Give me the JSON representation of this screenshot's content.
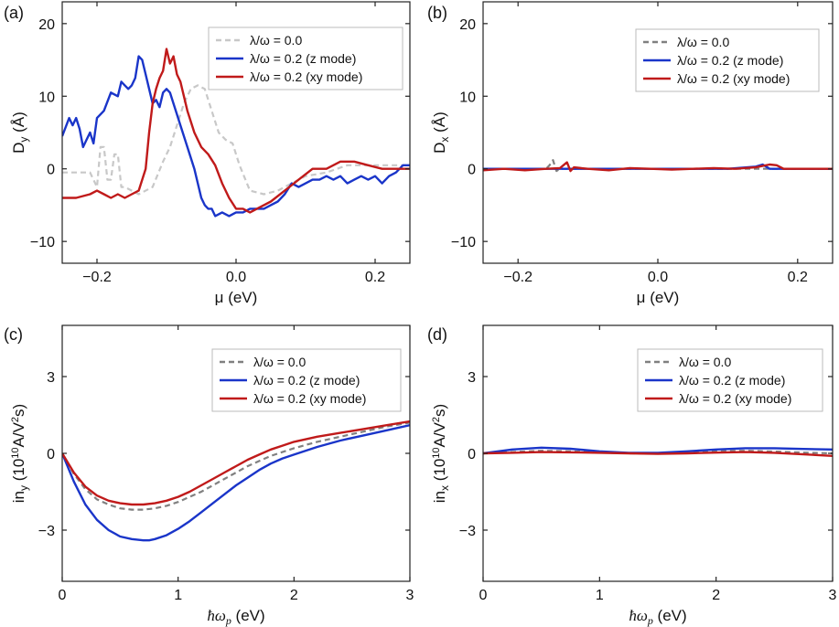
{
  "chart_data": [
    {
      "type": "line",
      "panel": "(a)",
      "xlabel": "μ (eV)",
      "ylabel_main": "D",
      "ylabel_sub": "y",
      "ylabel_unit": " (Å)",
      "xlim": [
        -0.25,
        0.25
      ],
      "ylim": [
        -13,
        23
      ],
      "xticks": [
        -0.2,
        0.0,
        0.2
      ],
      "xtick_labels": [
        "−0.2",
        "0.0",
        "0.2"
      ],
      "yticks": [
        20,
        10,
        0,
        -10
      ],
      "ytick_labels": [
        "20",
        "10",
        "0",
        "−10"
      ],
      "legend_position": "top-right",
      "series": [
        {
          "name": "λ/ω = 0.0",
          "color": "#c8c8c8",
          "dash": true,
          "x": [
            -0.25,
            -0.23,
            -0.21,
            -0.2,
            -0.195,
            -0.19,
            -0.185,
            -0.18,
            -0.175,
            -0.17,
            -0.165,
            -0.16,
            -0.15,
            -0.14,
            -0.12,
            -0.105,
            -0.095,
            -0.085,
            -0.075,
            -0.065,
            -0.055,
            -0.045,
            -0.035,
            -0.025,
            -0.015,
            -0.005,
            0.005,
            0.02,
            0.04,
            0.06,
            0.08,
            0.1,
            0.13,
            0.16,
            0.2,
            0.25
          ],
          "y": [
            -0.5,
            -0.5,
            -0.5,
            -2.5,
            3,
            3,
            -1.5,
            -1.5,
            2,
            2,
            -2.5,
            -2.5,
            -3,
            -3.5,
            -2.5,
            1,
            3,
            6,
            9,
            11,
            11.5,
            11,
            8,
            5,
            4,
            3.5,
            0.5,
            -3,
            -3.5,
            -3,
            -2,
            -1,
            -0.5,
            0.5,
            0.5,
            0.5
          ]
        },
        {
          "name": "λ/ω = 0.2 (z mode)",
          "color": "#1a35c9",
          "dash": false,
          "x": [
            -0.25,
            -0.24,
            -0.235,
            -0.23,
            -0.225,
            -0.22,
            -0.215,
            -0.21,
            -0.205,
            -0.2,
            -0.19,
            -0.18,
            -0.17,
            -0.165,
            -0.16,
            -0.155,
            -0.15,
            -0.145,
            -0.14,
            -0.135,
            -0.13,
            -0.125,
            -0.12,
            -0.115,
            -0.11,
            -0.105,
            -0.1,
            -0.095,
            -0.09,
            -0.08,
            -0.07,
            -0.06,
            -0.055,
            -0.05,
            -0.045,
            -0.04,
            -0.035,
            -0.03,
            -0.02,
            -0.01,
            0.0,
            0.01,
            0.02,
            0.03,
            0.04,
            0.05,
            0.06,
            0.07,
            0.08,
            0.09,
            0.1,
            0.11,
            0.12,
            0.13,
            0.14,
            0.15,
            0.16,
            0.17,
            0.18,
            0.19,
            0.2,
            0.21,
            0.22,
            0.23,
            0.24,
            0.25
          ],
          "y": [
            4.5,
            7,
            6,
            7,
            5.5,
            3,
            4,
            5,
            3.5,
            7,
            8,
            10.5,
            10,
            12,
            11.5,
            11,
            11.5,
            12.5,
            15.5,
            15,
            13,
            11,
            9,
            9.5,
            8.5,
            10.5,
            11,
            10.5,
            9,
            6,
            3,
            0,
            -2,
            -4,
            -5,
            -5.5,
            -5.5,
            -6.5,
            -6,
            -6.5,
            -6,
            -6,
            -5.5,
            -5.5,
            -5.5,
            -5,
            -4.5,
            -3.5,
            -2,
            -2.5,
            -2,
            -1.5,
            -1.5,
            -1,
            -1.5,
            -1,
            -2,
            -1.5,
            -1,
            -1.5,
            -1,
            -2,
            -1,
            -0.5,
            0.5,
            0.5
          ]
        },
        {
          "name": "λ/ω = 0.2 (xy mode)",
          "color": "#c01a1a",
          "dash": false,
          "x": [
            -0.25,
            -0.23,
            -0.21,
            -0.2,
            -0.19,
            -0.18,
            -0.17,
            -0.16,
            -0.15,
            -0.14,
            -0.13,
            -0.125,
            -0.12,
            -0.115,
            -0.11,
            -0.105,
            -0.1,
            -0.095,
            -0.09,
            -0.085,
            -0.08,
            -0.075,
            -0.07,
            -0.06,
            -0.05,
            -0.04,
            -0.03,
            -0.02,
            -0.01,
            0.0,
            0.01,
            0.02,
            0.03,
            0.05,
            0.07,
            0.09,
            0.11,
            0.13,
            0.15,
            0.17,
            0.19,
            0.21,
            0.23,
            0.25
          ],
          "y": [
            -4,
            -4,
            -3.5,
            -3,
            -3.5,
            -4,
            -3.5,
            -4,
            -3.5,
            -3,
            0,
            5,
            9,
            11,
            12.5,
            13.5,
            16.5,
            14.5,
            15.5,
            13,
            12,
            10,
            8,
            5,
            3,
            2,
            0.5,
            -2,
            -4,
            -5.5,
            -5.5,
            -6,
            -5.5,
            -4.5,
            -3,
            -1.5,
            0,
            0,
            1,
            1,
            0.5,
            0,
            0,
            0
          ]
        }
      ]
    },
    {
      "type": "line",
      "panel": "(b)",
      "xlabel": "μ (eV)",
      "ylabel_main": "D",
      "ylabel_sub": "x",
      "ylabel_unit": " (Å)",
      "xlim": [
        -0.25,
        0.25
      ],
      "ylim": [
        -13,
        23
      ],
      "xticks": [
        -0.2,
        0.0,
        0.2
      ],
      "xtick_labels": [
        "−0.2",
        "0.0",
        "0.2"
      ],
      "yticks": [
        20,
        10,
        0,
        -10
      ],
      "ytick_labels": [
        "20",
        "10",
        "0",
        "−10"
      ],
      "legend_position": "top-right",
      "series": [
        {
          "name": "λ/ω = 0.0",
          "color": "#808080",
          "dash": true,
          "x": [
            -0.25,
            -0.2,
            -0.16,
            -0.155,
            -0.15,
            -0.145,
            -0.14,
            -0.1,
            -0.05,
            0.0,
            0.05,
            0.1,
            0.15,
            0.2,
            0.25
          ],
          "y": [
            0,
            0,
            0,
            0.5,
            1.2,
            -0.3,
            0,
            0,
            0,
            0,
            0,
            0,
            0,
            0,
            0
          ]
        },
        {
          "name": "λ/ω = 0.2 (z mode)",
          "color": "#1a35c9",
          "dash": false,
          "x": [
            -0.25,
            -0.2,
            -0.15,
            -0.1,
            -0.05,
            0.0,
            0.05,
            0.1,
            0.14,
            0.15,
            0.16,
            0.2,
            0.25
          ],
          "y": [
            0,
            0,
            0,
            0,
            0,
            0,
            0,
            0,
            0.3,
            0.6,
            0,
            0,
            0
          ]
        },
        {
          "name": "λ/ω = 0.2 (xy mode)",
          "color": "#c01a1a",
          "dash": false,
          "x": [
            -0.25,
            -0.22,
            -0.19,
            -0.16,
            -0.14,
            -0.13,
            -0.125,
            -0.12,
            -0.1,
            -0.07,
            -0.04,
            -0.01,
            0.02,
            0.05,
            0.08,
            0.11,
            0.14,
            0.16,
            0.17,
            0.18,
            0.2,
            0.25
          ],
          "y": [
            -0.2,
            0,
            -0.2,
            0,
            0.1,
            0.9,
            -0.3,
            0.2,
            0,
            -0.2,
            0.1,
            0,
            -0.1,
            0,
            0.1,
            0,
            0.2,
            0.6,
            0.5,
            0,
            0,
            0
          ]
        }
      ]
    },
    {
      "type": "line",
      "panel": "(c)",
      "xlabel": "ħω",
      "xlabel_sub": "p",
      "xlabel_unit": " (eV)",
      "ylabel_main": "in",
      "ylabel_sub": "y",
      "ylabel_mid": " (10",
      "ylabel_sup": "10",
      "ylabel_tail": "A/V",
      "ylabel_sup2": "2",
      "ylabel_end": "s)",
      "xlim": [
        0,
        3
      ],
      "ylim": [
        -5,
        5
      ],
      "xticks": [
        0,
        1,
        2,
        3
      ],
      "xtick_labels": [
        "0",
        "1",
        "2",
        "3"
      ],
      "yticks": [
        3,
        0,
        -3
      ],
      "ytick_labels": [
        "3",
        "0",
        "−3"
      ],
      "legend_position": "top-right",
      "series": [
        {
          "name": "λ/ω = 0.0",
          "color": "#808080",
          "dash": true,
          "x": [
            0,
            0.1,
            0.2,
            0.3,
            0.4,
            0.5,
            0.6,
            0.7,
            0.8,
            0.9,
            1.0,
            1.1,
            1.2,
            1.3,
            1.4,
            1.5,
            1.6,
            1.7,
            1.8,
            1.9,
            2.0,
            2.2,
            2.4,
            2.6,
            2.8,
            3.0
          ],
          "y": [
            0,
            -0.8,
            -1.4,
            -1.8,
            -2.0,
            -2.15,
            -2.2,
            -2.2,
            -2.15,
            -2.05,
            -1.9,
            -1.7,
            -1.5,
            -1.25,
            -1.0,
            -0.75,
            -0.5,
            -0.3,
            -0.1,
            0.05,
            0.2,
            0.45,
            0.65,
            0.85,
            1.05,
            1.2
          ]
        },
        {
          "name": "λ/ω = 0.2 (z mode)",
          "color": "#1a35c9",
          "dash": false,
          "x": [
            0,
            0.1,
            0.2,
            0.3,
            0.4,
            0.5,
            0.6,
            0.7,
            0.75,
            0.8,
            0.9,
            1.0,
            1.1,
            1.2,
            1.3,
            1.4,
            1.5,
            1.6,
            1.7,
            1.8,
            1.9,
            2.0,
            2.2,
            2.4,
            2.6,
            2.8,
            3.0
          ],
          "y": [
            0,
            -1.1,
            -2.0,
            -2.6,
            -3.0,
            -3.25,
            -3.35,
            -3.4,
            -3.4,
            -3.35,
            -3.2,
            -2.95,
            -2.65,
            -2.3,
            -1.95,
            -1.6,
            -1.25,
            -0.95,
            -0.65,
            -0.4,
            -0.2,
            -0.05,
            0.25,
            0.5,
            0.7,
            0.9,
            1.1
          ]
        },
        {
          "name": "λ/ω = 0.2 (xy mode)",
          "color": "#c01a1a",
          "dash": false,
          "x": [
            0,
            0.1,
            0.2,
            0.3,
            0.4,
            0.5,
            0.6,
            0.7,
            0.8,
            0.9,
            1.0,
            1.1,
            1.2,
            1.3,
            1.4,
            1.5,
            1.6,
            1.7,
            1.8,
            1.9,
            2.0,
            2.2,
            2.4,
            2.6,
            2.8,
            3.0
          ],
          "y": [
            0,
            -0.75,
            -1.3,
            -1.65,
            -1.85,
            -1.95,
            -2.0,
            -2.0,
            -1.95,
            -1.85,
            -1.7,
            -1.5,
            -1.25,
            -1.0,
            -0.75,
            -0.5,
            -0.25,
            -0.05,
            0.15,
            0.3,
            0.45,
            0.65,
            0.8,
            0.95,
            1.1,
            1.25
          ]
        }
      ]
    },
    {
      "type": "line",
      "panel": "(d)",
      "xlabel": "ħω",
      "xlabel_sub": "p",
      "xlabel_unit": " (eV)",
      "ylabel_main": "in",
      "ylabel_sub": "x",
      "ylabel_mid": " (10",
      "ylabel_sup": "10",
      "ylabel_tail": "A/V",
      "ylabel_sup2": "2",
      "ylabel_end": "s)",
      "xlim": [
        0,
        3
      ],
      "ylim": [
        -5,
        5
      ],
      "xticks": [
        0,
        1,
        2,
        3
      ],
      "xtick_labels": [
        "0",
        "1",
        "2",
        "3"
      ],
      "yticks": [
        3,
        0,
        -3
      ],
      "ytick_labels": [
        "3",
        "0",
        "−3"
      ],
      "legend_position": "top-right",
      "series": [
        {
          "name": "λ/ω = 0.0",
          "color": "#808080",
          "dash": true,
          "x": [
            0,
            0.25,
            0.5,
            0.75,
            1.0,
            1.25,
            1.5,
            1.75,
            2.0,
            2.25,
            2.5,
            2.75,
            3.0
          ],
          "y": [
            0,
            0.05,
            0.1,
            0.08,
            0.03,
            0.0,
            0.0,
            0.03,
            0.08,
            0.1,
            0.07,
            0.03,
            0.0
          ]
        },
        {
          "name": "λ/ω = 0.2 (z mode)",
          "color": "#1a35c9",
          "dash": false,
          "x": [
            0,
            0.25,
            0.5,
            0.75,
            1.0,
            1.25,
            1.5,
            1.75,
            2.0,
            2.25,
            2.5,
            2.75,
            3.0
          ],
          "y": [
            0,
            0.15,
            0.22,
            0.18,
            0.08,
            0.02,
            0.02,
            0.08,
            0.15,
            0.2,
            0.2,
            0.17,
            0.15
          ]
        },
        {
          "name": "λ/ω = 0.2 (xy mode)",
          "color": "#c01a1a",
          "dash": false,
          "x": [
            0,
            0.25,
            0.5,
            0.75,
            1.0,
            1.25,
            1.5,
            1.75,
            2.0,
            2.25,
            2.5,
            2.75,
            3.0
          ],
          "y": [
            0,
            0.02,
            0.05,
            0.04,
            0.02,
            0.0,
            -0.02,
            0.0,
            0.03,
            0.05,
            0.02,
            -0.04,
            -0.1
          ]
        }
      ]
    }
  ]
}
